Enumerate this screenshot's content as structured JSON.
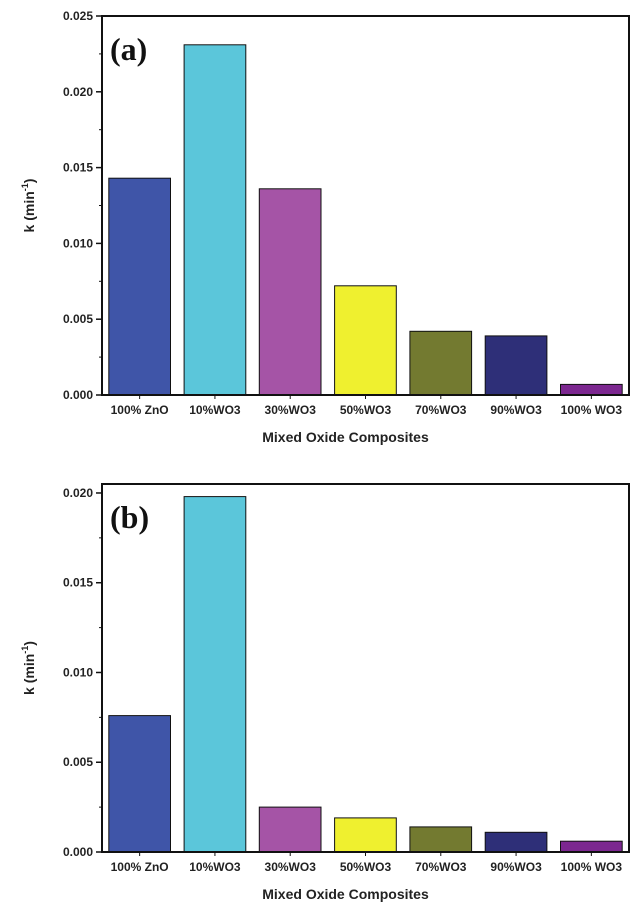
{
  "chart_data": [
    {
      "type": "bar",
      "panel_label": "(a)",
      "categories": [
        "100% ZnO",
        "10%WO3",
        "30%WO3",
        "50%WO3",
        "70%WO3",
        "90%WO3",
        "100% WO3"
      ],
      "values": [
        0.0143,
        0.0231,
        0.0136,
        0.0072,
        0.0042,
        0.0039,
        0.0007
      ],
      "colors": [
        "#3f55a8",
        "#5bc6da",
        "#a554a6",
        "#eff02f",
        "#737a30",
        "#2e2f78",
        "#7c2790"
      ],
      "ylim": [
        0,
        0.025
      ],
      "yticks": [
        "0.000",
        "0.005",
        "0.010",
        "0.015",
        "0.020",
        "0.025"
      ],
      "ylabel": "k  (min-1)",
      "xlabel": "Mixed Oxide Composites",
      "grid": false
    },
    {
      "type": "bar",
      "panel_label": "(b)",
      "categories": [
        "100% ZnO",
        "10%WO3",
        "30%WO3",
        "50%WO3",
        "70%WO3",
        "90%WO3",
        "100% WO3"
      ],
      "values": [
        0.0076,
        0.0198,
        0.0025,
        0.0019,
        0.0014,
        0.0011,
        0.0006
      ],
      "colors": [
        "#3f55a8",
        "#5bc6da",
        "#a554a6",
        "#eff02f",
        "#737a30",
        "#2e2f78",
        "#7c2790"
      ],
      "ylim": [
        0,
        0.0205
      ],
      "yticks": [
        "0.000",
        "0.005",
        "0.010",
        "0.015",
        "0.020"
      ],
      "ylabel": "k  (min-1)",
      "xlabel": "Mixed Oxide Composites",
      "grid": false
    }
  ]
}
